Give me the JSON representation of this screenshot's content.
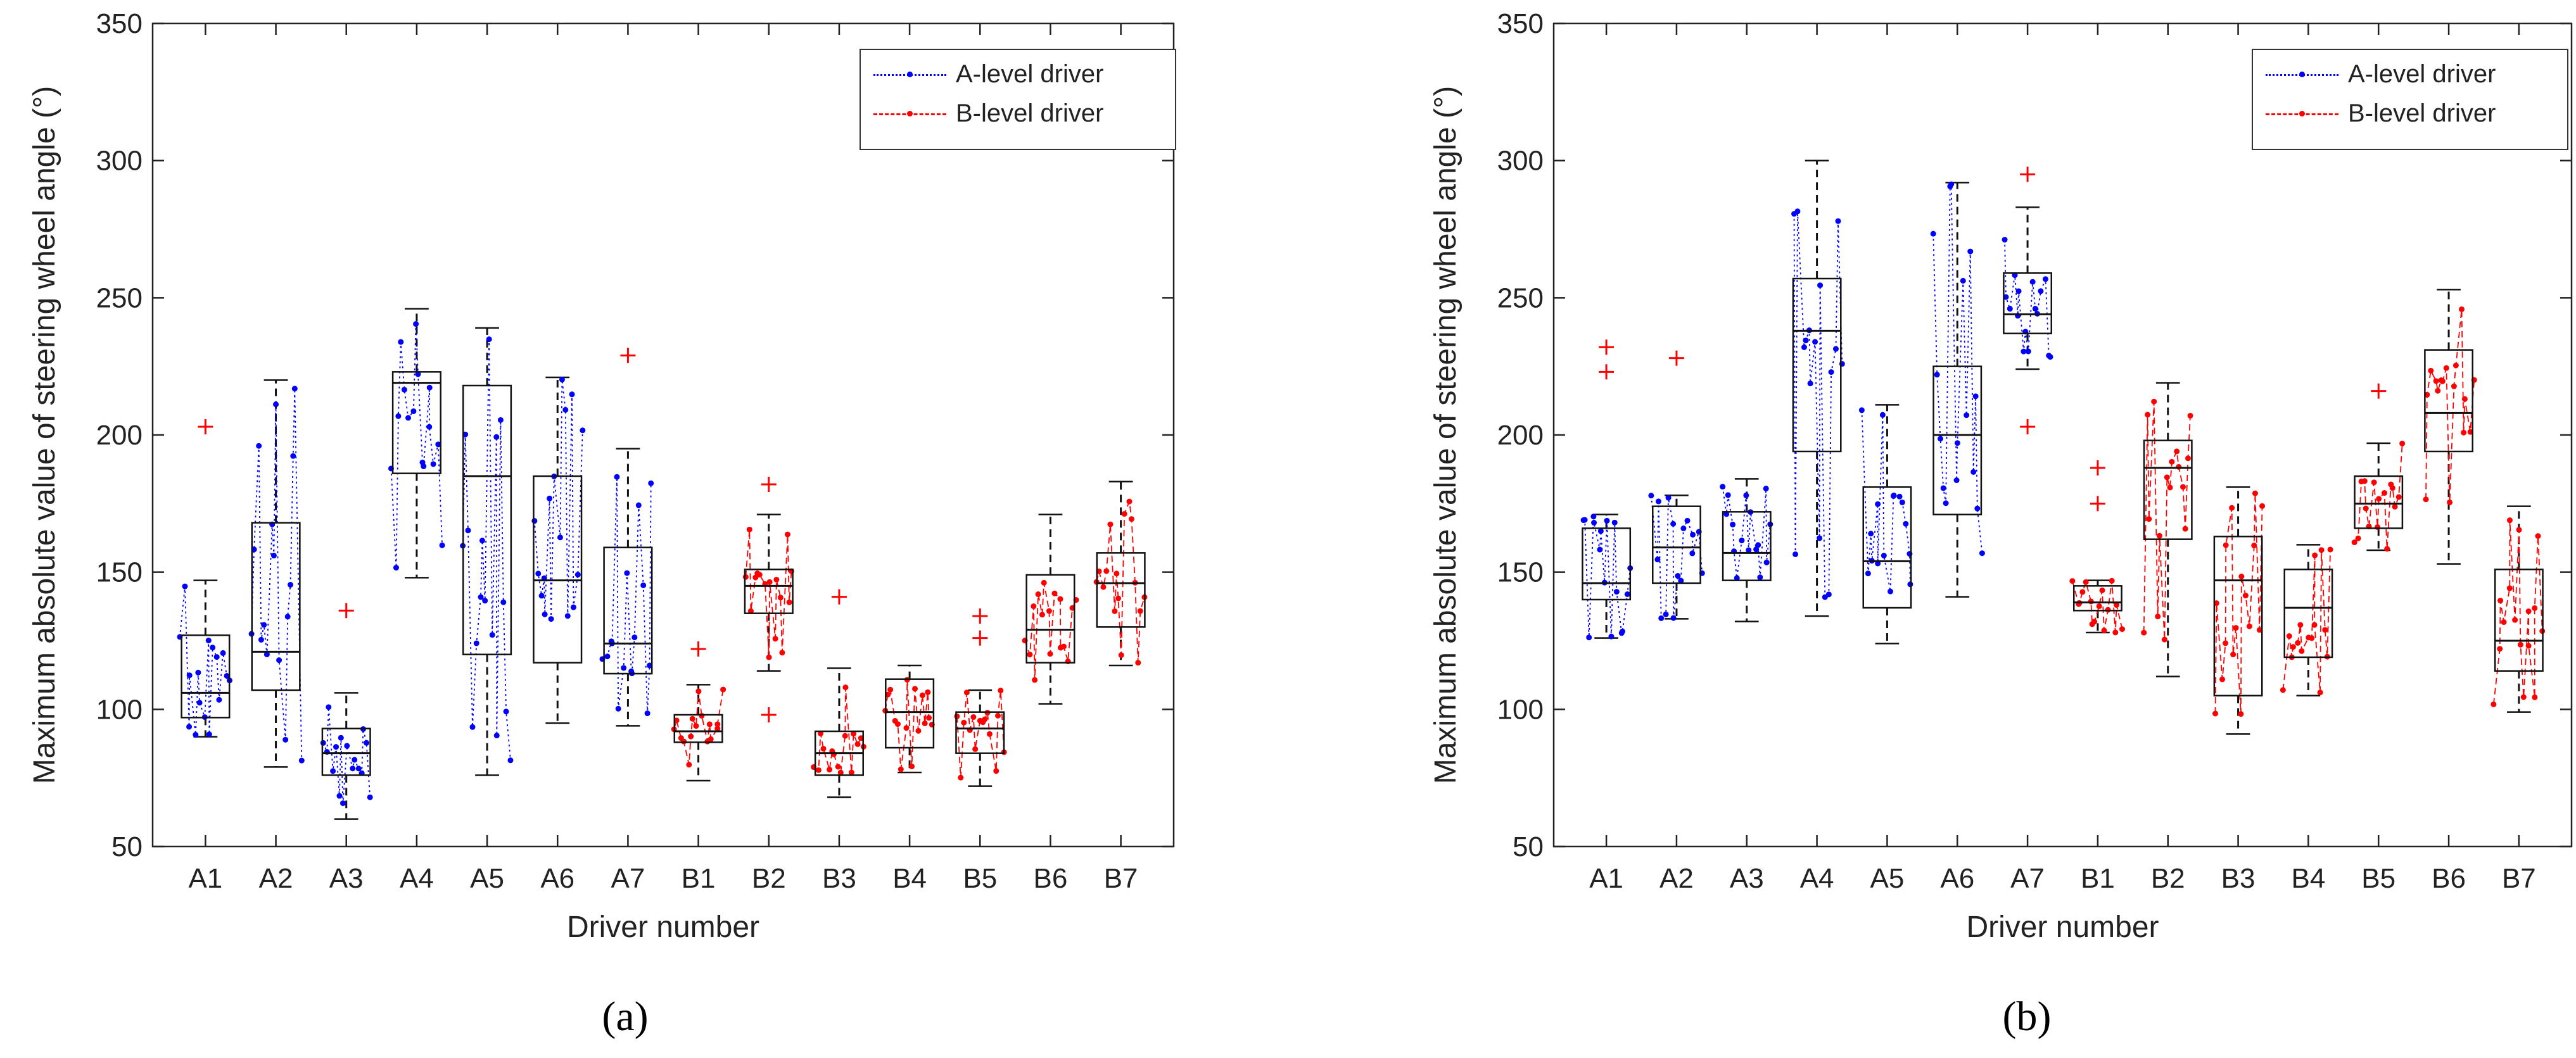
{
  "chart_data": [
    {
      "panel_id": "a",
      "caption": "(a)",
      "type": "box",
      "ylabel": "Maximum absolute value of steering wheel angle (°)",
      "xlabel": "Driver number",
      "ylim": [
        50,
        350
      ],
      "yticks": [
        50,
        100,
        150,
        200,
        250,
        300,
        350
      ],
      "categories": [
        "A1",
        "A2",
        "A3",
        "A4",
        "A5",
        "A6",
        "A7",
        "B1",
        "B2",
        "B3",
        "B4",
        "B5",
        "B6",
        "B7"
      ],
      "legend": [
        {
          "label": "A-level driver",
          "color": "#0000ff",
          "style": "dotted"
        },
        {
          "label": "B-level driver",
          "color": "#ff0000",
          "style": "dashed"
        }
      ],
      "boxes": [
        {
          "q1": 97,
          "median": 106,
          "q3": 127,
          "whisker_low": 90,
          "whisker_high": 147,
          "outliers": [
            203
          ]
        },
        {
          "q1": 107,
          "median": 121,
          "q3": 168,
          "whisker_low": 79,
          "whisker_high": 220,
          "outliers": []
        },
        {
          "q1": 76,
          "median": 84,
          "q3": 93,
          "whisker_low": 60,
          "whisker_high": 106,
          "outliers": [
            136
          ]
        },
        {
          "q1": 186,
          "median": 219,
          "q3": 223,
          "whisker_low": 148,
          "whisker_high": 246,
          "outliers": []
        },
        {
          "q1": 120,
          "median": 185,
          "q3": 218,
          "whisker_low": 76,
          "whisker_high": 239,
          "outliers": []
        },
        {
          "q1": 117,
          "median": 147,
          "q3": 185,
          "whisker_low": 95,
          "whisker_high": 221,
          "outliers": []
        },
        {
          "q1": 113,
          "median": 124,
          "q3": 159,
          "whisker_low": 94,
          "whisker_high": 195,
          "outliers": [
            229
          ]
        },
        {
          "q1": 88,
          "median": 92,
          "q3": 98,
          "whisker_low": 74,
          "whisker_high": 109,
          "outliers": [
            122
          ]
        },
        {
          "q1": 135,
          "median": 145,
          "q3": 151,
          "whisker_low": 114,
          "whisker_high": 171,
          "outliers": [
            182,
            98
          ]
        },
        {
          "q1": 76,
          "median": 84,
          "q3": 92,
          "whisker_low": 68,
          "whisker_high": 115,
          "outliers": [
            141
          ]
        },
        {
          "q1": 86,
          "median": 99,
          "q3": 111,
          "whisker_low": 77,
          "whisker_high": 116,
          "outliers": []
        },
        {
          "q1": 84,
          "median": 93,
          "q3": 99,
          "whisker_low": 72,
          "whisker_high": 107,
          "outliers": [
            126,
            134
          ]
        },
        {
          "q1": 117,
          "median": 129,
          "q3": 149,
          "whisker_low": 102,
          "whisker_high": 171,
          "outliers": []
        },
        {
          "q1": 130,
          "median": 146,
          "q3": 157,
          "whisker_low": 116,
          "whisker_high": 183,
          "outliers": []
        }
      ]
    },
    {
      "panel_id": "b",
      "caption": "(b)",
      "type": "box",
      "ylabel": "Maximum absolute value of steering wheel angle (°)",
      "xlabel": "Driver number",
      "ylim": [
        50,
        350
      ],
      "yticks": [
        50,
        100,
        150,
        200,
        250,
        300,
        350
      ],
      "categories": [
        "A1",
        "A2",
        "A3",
        "A4",
        "A5",
        "A6",
        "A7",
        "B1",
        "B2",
        "B3",
        "B4",
        "B5",
        "B6",
        "B7"
      ],
      "legend": [
        {
          "label": "A-level driver",
          "color": "#0000ff",
          "style": "dotted"
        },
        {
          "label": "B-level driver",
          "color": "#ff0000",
          "style": "dashed"
        }
      ],
      "boxes": [
        {
          "q1": 140,
          "median": 146,
          "q3": 166,
          "whisker_low": 126,
          "whisker_high": 171,
          "outliers": [
            232,
            223
          ]
        },
        {
          "q1": 146,
          "median": 159,
          "q3": 174,
          "whisker_low": 133,
          "whisker_high": 178,
          "outliers": [
            228
          ]
        },
        {
          "q1": 147,
          "median": 157,
          "q3": 172,
          "whisker_low": 132,
          "whisker_high": 184,
          "outliers": []
        },
        {
          "q1": 194,
          "median": 238,
          "q3": 257,
          "whisker_low": 134,
          "whisker_high": 300,
          "outliers": []
        },
        {
          "q1": 137,
          "median": 154,
          "q3": 181,
          "whisker_low": 124,
          "whisker_high": 211,
          "outliers": []
        },
        {
          "q1": 171,
          "median": 200,
          "q3": 225,
          "whisker_low": 141,
          "whisker_high": 292,
          "outliers": []
        },
        {
          "q1": 237,
          "median": 244,
          "q3": 259,
          "whisker_low": 224,
          "whisker_high": 283,
          "outliers": [
            295,
            203
          ]
        },
        {
          "q1": 136,
          "median": 139,
          "q3": 145,
          "whisker_low": 128,
          "whisker_high": 147,
          "outliers": [
            188,
            175
          ]
        },
        {
          "q1": 162,
          "median": 188,
          "q3": 198,
          "whisker_low": 112,
          "whisker_high": 219,
          "outliers": []
        },
        {
          "q1": 105,
          "median": 147,
          "q3": 163,
          "whisker_low": 91,
          "whisker_high": 181,
          "outliers": []
        },
        {
          "q1": 119,
          "median": 137,
          "q3": 151,
          "whisker_low": 105,
          "whisker_high": 160,
          "outliers": []
        },
        {
          "q1": 166,
          "median": 175,
          "q3": 185,
          "whisker_low": 158,
          "whisker_high": 197,
          "outliers": [
            216
          ]
        },
        {
          "q1": 194,
          "median": 208,
          "q3": 231,
          "whisker_low": 153,
          "whisker_high": 253,
          "outliers": []
        },
        {
          "q1": 114,
          "median": 125,
          "q3": 151,
          "whisker_low": 99,
          "whisker_high": 174,
          "outliers": []
        }
      ]
    }
  ]
}
